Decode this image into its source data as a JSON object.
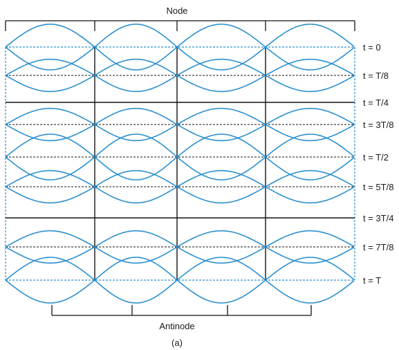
{
  "top_label": "Node",
  "bottom_label": "Antinode",
  "caption": "(a)",
  "rows": [
    {
      "label": "t = 0",
      "amplitude": 1
    },
    {
      "label": "t = T/8",
      "amplitude": 0.707
    },
    {
      "label": "t = T/4",
      "amplitude": 0
    },
    {
      "label": "t = 3T/8",
      "amplitude": -0.707
    },
    {
      "label": "t = T/2",
      "amplitude": -1
    },
    {
      "label": "t = 5T/8",
      "amplitude": -0.707
    },
    {
      "label": "t = 3T/4",
      "amplitude": 0
    },
    {
      "label": "t = 7T/8",
      "amplitude": 0.707
    },
    {
      "label": "t = T",
      "amplitude": 1
    }
  ],
  "colors": {
    "wave": "#2a8fcf",
    "guide": "#2a8fcf",
    "axis": "#111111",
    "text": "#1a1a1a"
  }
}
